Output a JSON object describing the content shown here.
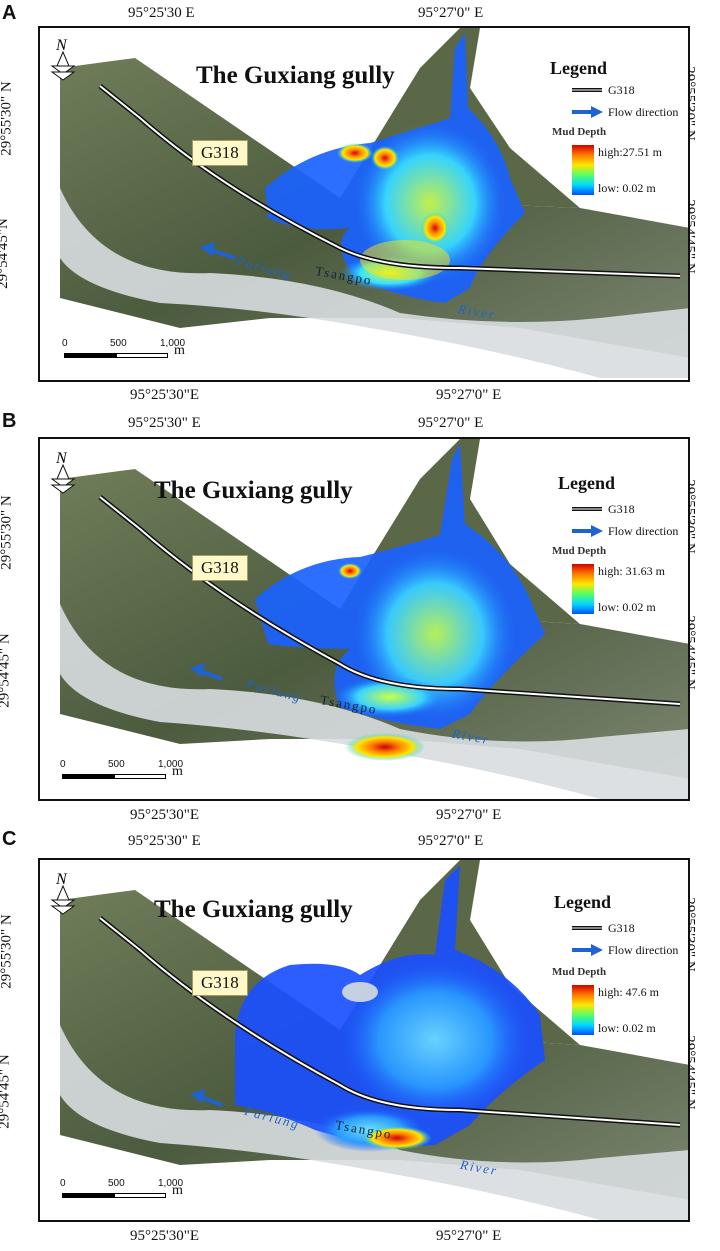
{
  "panels": [
    {
      "letter": "A",
      "top_coords": [
        "95°25'30 E",
        "95°27'0\" E"
      ],
      "bottom_coords": [
        "95°25'30\"E",
        "95°27'0\" E"
      ],
      "left_coords": [
        "29°55'30\" N",
        "29°54'45\"N"
      ],
      "right_coords": [
        "29°55'30\" N",
        "29°54'45\" N"
      ],
      "title": "The Guxiang gully",
      "road_label": "G318",
      "legend": {
        "title": "Legend",
        "road": "G318",
        "flow": "Flow direction",
        "depth_title": "Mud Depth",
        "high": "high:27.51 m",
        "low": "low: 0.02 m"
      },
      "river": [
        "Parlung",
        "Tsangpo",
        "River"
      ],
      "scale": {
        "ticks": [
          "0",
          "500",
          "1,000"
        ],
        "unit": "m"
      },
      "compass": "N"
    },
    {
      "letter": "B",
      "top_coords": [
        "95°25'30\" E",
        "95°27'0\" E"
      ],
      "bottom_coords": [
        "95°25'30\"E",
        "95°27'0\" E"
      ],
      "left_coords": [
        "29°55'30\" N",
        "29°54'45\" N"
      ],
      "right_coords": [
        "29°55'30\" N",
        "29°54'45\" N"
      ],
      "title": "The Guxiang gully",
      "road_label": "G318",
      "legend": {
        "title": "Legend",
        "road": "G318",
        "flow": "Flow direction",
        "depth_title": "Mud Depth",
        "high": "high: 31.63 m",
        "low": "low:  0.02 m"
      },
      "river": [
        "Parlung",
        "Tsangpo",
        "River"
      ],
      "scale": {
        "ticks": [
          "0",
          "500",
          "1,000"
        ],
        "unit": "m"
      },
      "compass": "N"
    },
    {
      "letter": "C",
      "top_coords": [
        "95°25'30\" E",
        "95°27'0\" E"
      ],
      "bottom_coords": [
        "95°25'30\"E",
        "95°27'0\" E"
      ],
      "left_coords": [
        "29°55'30\" N",
        "29°54'45\" N"
      ],
      "right_coords": [
        "29°55'30\" N",
        "29°54'45\" N"
      ],
      "title": "The Guxiang gully",
      "road_label": "G318",
      "legend": {
        "title": "Legend",
        "road": "G318",
        "flow": "Flow direction",
        "depth_title": "Mud Depth",
        "high": "high:  47.6 m",
        "low": "low:  0.02 m"
      },
      "river": [
        "Parlung",
        "Tsangpo",
        "River"
      ],
      "scale": {
        "ticks": [
          "0",
          "500",
          "1,000"
        ],
        "unit": "m"
      },
      "compass": "N"
    }
  ],
  "colors": {
    "terrain_dark": "#4a5a3c",
    "terrain_light": "#8e9a78",
    "riverbed": "#d8dde0",
    "river_text": "#1d64c9",
    "label_box": "#fff8c8",
    "depth_high": "#d40000",
    "depth_low": "#0050ff"
  },
  "icons": [
    "north-arrow-icon",
    "flow-arrow-icon",
    "road-double-line-icon"
  ]
}
